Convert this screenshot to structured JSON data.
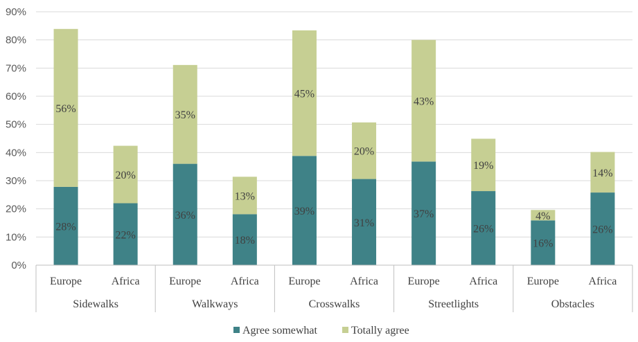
{
  "chart_data": {
    "type": "bar",
    "stacked": true,
    "title": "",
    "xlabel": "",
    "ylabel": "",
    "ylim": [
      0,
      90
    ],
    "ytick_step": 10,
    "ytick_suffix": "%",
    "grid": true,
    "legend_position": "bottom",
    "groups": [
      "Sidewalks",
      "Walkways",
      "Crosswalks",
      "Streetlights",
      "Obstacles"
    ],
    "categories": [
      "Europe",
      "Africa",
      "Europe",
      "Africa",
      "Europe",
      "Africa",
      "Europe",
      "Africa",
      "Europe",
      "Africa"
    ],
    "series": [
      {
        "name": "Agree somewhat",
        "color": "#3f8287",
        "values": [
          27.8,
          22.0,
          36.0,
          18.1,
          38.8,
          30.6,
          36.8,
          26.3,
          15.9,
          25.8
        ],
        "labels": [
          "28%",
          "22%",
          "36%",
          "18%",
          "39%",
          "31%",
          "37%",
          "26%",
          "16%",
          "26%"
        ]
      },
      {
        "name": "Totally agree",
        "color": "#c6cf93",
        "values": [
          56.1,
          20.4,
          35.1,
          13.3,
          44.6,
          20.1,
          43.2,
          18.6,
          3.7,
          14.4
        ],
        "labels": [
          "56%",
          "20%",
          "35%",
          "13%",
          "45%",
          "20%",
          "43%",
          "19%",
          "4%",
          "14%"
        ]
      }
    ]
  }
}
